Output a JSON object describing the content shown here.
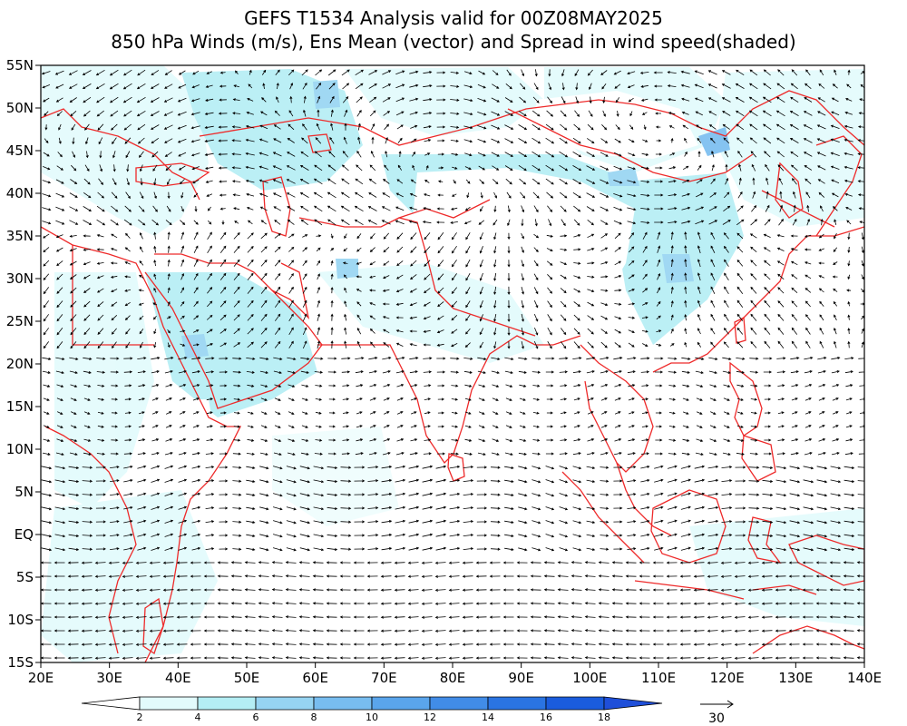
{
  "title_line1": "GEFS T1534 Analysis valid for 00Z08MAY2025",
  "title_line2": "850 hPa Winds (m/s), Ens Mean (vector) and Spread in wind speed(shaded)",
  "lon_labels": [
    "20E",
    "30E",
    "40E",
    "50E",
    "60E",
    "70E",
    "80E",
    "90E",
    "100E",
    "110E",
    "120E",
    "130E",
    "140E"
  ],
  "lat_labels": [
    "55N",
    "50N",
    "45N",
    "40N",
    "35N",
    "30N",
    "25N",
    "20N",
    "15N",
    "10N",
    "5N",
    "EQ",
    "5S",
    "10S",
    "15S"
  ],
  "colorbar": {
    "levels": [
      "2",
      "4",
      "6",
      "8",
      "10",
      "12",
      "14",
      "16",
      "18"
    ],
    "colors": [
      "#ffffff",
      "#e2fbfc",
      "#b4eef4",
      "#96d4f2",
      "#78bdf0",
      "#5aa5ec",
      "#418ce7",
      "#2a74e2",
      "#1a5cdd",
      "#1f4fd9"
    ]
  },
  "reference_vector": {
    "value": "30"
  },
  "colors": {
    "coastline": "#ee2a2a",
    "frame": "#000000",
    "vector": "#000000"
  }
}
